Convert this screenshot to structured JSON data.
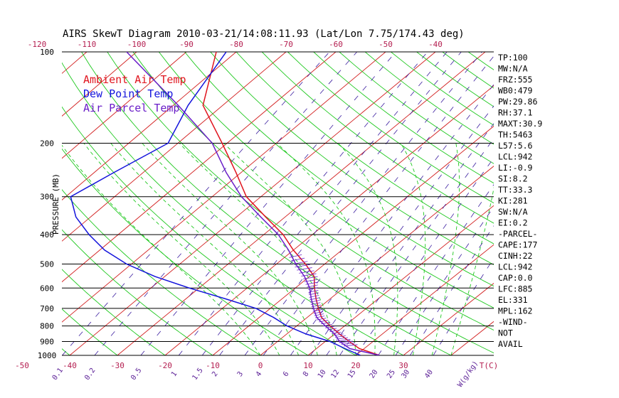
{
  "chart_data": {
    "type": "line",
    "title": "AIRS SkewT Diagram 2010-03-21/14:08:11.93 (Lat/Lon 7.75/174.43 deg)",
    "ylabel": "PRESSURE (MB)",
    "xlabel": "T(C)",
    "mixing_ratio_unit": "W(g/kg)",
    "pressure_ticks": [
      "100",
      "200",
      "300",
      "400",
      "500",
      "600",
      "700",
      "800",
      "900",
      "1000"
    ],
    "pressure_values": [
      100,
      200,
      300,
      400,
      500,
      600,
      700,
      800,
      900,
      1000
    ],
    "top_temp_ticks": [
      -120,
      -110,
      -100,
      -90,
      -80,
      -70,
      -60,
      -50,
      -40
    ],
    "bottom_temp_ticks": [
      -50,
      -40,
      -30,
      -20,
      -10,
      0,
      10,
      20,
      30
    ],
    "mixing_ratio_labels": [
      "0.1",
      "0.2",
      "0.5",
      "1",
      "1.5",
      "2",
      "3",
      "4",
      "6",
      "8",
      "10",
      "12",
      "15",
      "20",
      "25",
      "30",
      "40"
    ],
    "legend": [
      {
        "label": "Ambient Air Temp",
        "color": "#e0141e"
      },
      {
        "label": "Dew Point Temp",
        "color": "#1414dc"
      },
      {
        "label": "Air Parcel Temp",
        "color": "#6a1ec8"
      }
    ],
    "series": [
      {
        "name": "Ambient Air Temp",
        "color": "#e0141e",
        "points": [
          [
            100,
            -84
          ],
          [
            150,
            -74
          ],
          [
            200,
            -61
          ],
          [
            250,
            -51
          ],
          [
            300,
            -43
          ],
          [
            350,
            -34
          ],
          [
            400,
            -26
          ],
          [
            450,
            -20
          ],
          [
            500,
            -14
          ],
          [
            550,
            -9
          ],
          [
            600,
            -6
          ],
          [
            650,
            -3
          ],
          [
            700,
            0
          ],
          [
            750,
            3
          ],
          [
            800,
            7
          ],
          [
            850,
            11
          ],
          [
            900,
            15
          ],
          [
            950,
            19
          ],
          [
            1000,
            25
          ]
        ]
      },
      {
        "name": "Dew Point Temp",
        "color": "#1414dc",
        "points": [
          [
            100,
            -82
          ],
          [
            150,
            -77
          ],
          [
            200,
            -72
          ],
          [
            250,
            -76
          ],
          [
            300,
            -79
          ],
          [
            350,
            -73
          ],
          [
            400,
            -66
          ],
          [
            450,
            -59
          ],
          [
            500,
            -51
          ],
          [
            550,
            -42
          ],
          [
            600,
            -32
          ],
          [
            650,
            -22
          ],
          [
            700,
            -13
          ],
          [
            750,
            -7
          ],
          [
            800,
            -2
          ],
          [
            850,
            4
          ],
          [
            900,
            11
          ],
          [
            950,
            16
          ],
          [
            1000,
            21
          ]
        ]
      },
      {
        "name": "Air Parcel Temp",
        "color": "#6a1ec8",
        "points": [
          [
            100,
            -102
          ],
          [
            150,
            -79
          ],
          [
            200,
            -63
          ],
          [
            250,
            -53
          ],
          [
            300,
            -44
          ],
          [
            350,
            -35
          ],
          [
            400,
            -27
          ],
          [
            450,
            -21
          ],
          [
            500,
            -16
          ],
          [
            550,
            -11
          ],
          [
            600,
            -7
          ],
          [
            650,
            -4
          ],
          [
            700,
            -1
          ],
          [
            750,
            2
          ],
          [
            800,
            6
          ],
          [
            850,
            10
          ],
          [
            900,
            13
          ],
          [
            950,
            17
          ],
          [
            1000,
            25
          ]
        ]
      }
    ],
    "side_panel": [
      "TP:100",
      "MW:N/A",
      "FRZ:555",
      "WB0:479",
      "PW:29.86",
      "RH:37.1",
      "MAXT:30.9",
      "TH:5463",
      "L57:5.6",
      "LCL:942",
      "LI:-0.9",
      "SI:8.2",
      "TT:33.3",
      "KI:281",
      "SW:N/A",
      "EI:0.2",
      "-PARCEL-",
      "CAPE:177",
      "CINH:22",
      "LCL:942",
      "CAP:0.0",
      "LFC:885",
      "EL:331",
      "MPL:162",
      "-WIND-",
      "NOT",
      "AVAIL"
    ],
    "colors": {
      "isotherm": "#d21e1e",
      "dry_adiabat": "#1ec81e",
      "moist_adiabat": "#1ec81e",
      "mixing_ratio": "#3c1ea0",
      "isobar": "#000000",
      "axis_text": "#b41e50",
      "mixing_text": "#5a1e96"
    },
    "grid": true
  }
}
